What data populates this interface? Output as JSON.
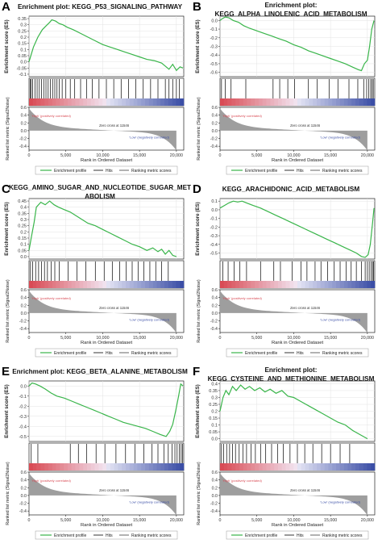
{
  "figure": {
    "colors": {
      "enrichment": "#39b54a",
      "hit": "#000000",
      "metric": "#9e9e9e",
      "positive": "#d94b55",
      "negative": "#3b4ea6",
      "axis": "#222222"
    }
  },
  "chart_data": [
    {
      "panel_letter": "A",
      "type": "line",
      "title_lines": [
        "Enrichment plot: KEGG_P53_SIGNALING_PATHWAY"
      ],
      "ylabel_top": "Enrichment score (ES)",
      "ylabel_bottom": "Ranked list metric (Signal2Noise)",
      "xlabel": "Rank in Ordered Dataset",
      "es_ticks": [
        0.35,
        0.3,
        0.25,
        0.2,
        0.15,
        0.1,
        0.05,
        0.0,
        -0.05,
        -0.1
      ],
      "es_ylim": [
        -0.12,
        0.37
      ],
      "x": [
        0,
        600,
        1200,
        1800,
        2300,
        2800,
        3100,
        3600,
        4100,
        4600,
        5200,
        6000,
        7000,
        8000,
        9000,
        10000,
        11000,
        12000,
        13000,
        14000,
        15000,
        16000,
        17000,
        18000,
        19000,
        19500,
        20000,
        20500,
        20900
      ],
      "es": [
        0.0,
        0.12,
        0.2,
        0.26,
        0.29,
        0.32,
        0.34,
        0.33,
        0.31,
        0.3,
        0.28,
        0.26,
        0.23,
        0.2,
        0.17,
        0.14,
        0.12,
        0.1,
        0.08,
        0.06,
        0.04,
        0.02,
        0.01,
        -0.01,
        -0.06,
        -0.02,
        -0.07,
        -0.04,
        -0.05
      ],
      "hits": [
        150,
        300,
        500,
        800,
        1100,
        1400,
        1700,
        2000,
        2300,
        2600,
        2900,
        3200,
        3500,
        3800,
        4100,
        4500,
        5000,
        5600,
        6200,
        7000,
        7800,
        8600,
        9500,
        10500,
        11500,
        12500,
        13500,
        14500,
        15500,
        16500,
        17500,
        18500,
        19000,
        19500,
        20000,
        20400
      ],
      "metric_ticks": [
        0.6,
        0.4,
        0.2,
        0.0,
        -0.2,
        -0.4
      ],
      "metric_ylim": [
        -0.5,
        0.6
      ],
      "metric_start": 0.5,
      "metric_end": -0.45,
      "x_ticks": [
        "0",
        "5,000",
        "10,000",
        "15,000",
        "20,000"
      ],
      "xlim": [
        0,
        21000
      ],
      "zero_cross_label": "Zero cross at 11546",
      "pos_label": "'High' (positively correlated)",
      "neg_label": "'Low' (negatively correlated)",
      "legend": [
        "Enrichment profile",
        "Hits",
        "Ranking metric scores"
      ]
    },
    {
      "panel_letter": "B",
      "type": "line",
      "title_lines": [
        "Enrichment plot:",
        "KEGG_ALPHA_LINOLENIC_ACID_METABOLISM"
      ],
      "ylabel_top": "Enrichment score (ES)",
      "ylabel_bottom": "Ranked list metric (Signal2Noise)",
      "xlabel": "Rank in Ordered Dataset",
      "es_ticks": [
        0.0,
        -0.1,
        -0.2,
        -0.3,
        -0.4,
        -0.5,
        -0.6
      ],
      "es_ylim": [
        -0.65,
        0.05
      ],
      "x": [
        0,
        300,
        700,
        1200,
        1800,
        2500,
        3200,
        4000,
        5000,
        6000,
        7000,
        8000,
        9000,
        10000,
        11000,
        12000,
        13000,
        14000,
        15000,
        16000,
        17000,
        18000,
        18800,
        19200,
        19600,
        20000,
        20300,
        20600,
        20900
      ],
      "es": [
        0.0,
        0.02,
        0.04,
        0.03,
        0.0,
        -0.02,
        -0.06,
        -0.09,
        -0.12,
        -0.15,
        -0.18,
        -0.21,
        -0.24,
        -0.28,
        -0.31,
        -0.35,
        -0.38,
        -0.41,
        -0.44,
        -0.47,
        -0.5,
        -0.54,
        -0.57,
        -0.58,
        -0.5,
        -0.46,
        -0.3,
        -0.1,
        0.0
      ],
      "hits": [
        200,
        700,
        1500,
        3500,
        7200,
        8100,
        9200,
        10100,
        12000,
        13200,
        14800,
        16000,
        17500,
        18700,
        19500,
        19900,
        20200,
        20450,
        20650,
        20800
      ],
      "metric_ticks": [
        0.6,
        0.4,
        0.2,
        0.0,
        -0.2,
        -0.4
      ],
      "metric_ylim": [
        -0.5,
        0.6
      ],
      "metric_start": 0.5,
      "metric_end": -0.45,
      "x_ticks": [
        "0",
        "5,000",
        "10,000",
        "15,000",
        "20,000"
      ],
      "xlim": [
        0,
        21000
      ],
      "zero_cross_label": "Zero cross at 11546",
      "pos_label": "'High' (positively correlated)",
      "neg_label": "'Low' (negatively correlated)",
      "legend": [
        "Enrichment profile",
        "Hits",
        "Ranking metric scores"
      ]
    },
    {
      "panel_letter": "C",
      "type": "line",
      "title_lines": [
        "KEGG_AMINO_SUGAR_AND_NUCLEOTIDE_SUGAR_MET",
        "ABOLISM"
      ],
      "ylabel_top": "Enrichment score (ES)",
      "ylabel_bottom": "Ranked list metric (Signal2Noise)",
      "xlabel": "Rank in Ordered Dataset",
      "es_ticks": [
        0.45,
        0.4,
        0.35,
        0.3,
        0.25,
        0.2,
        0.15,
        0.1,
        0.05,
        0.0
      ],
      "es_ylim": [
        -0.02,
        0.47
      ],
      "x": [
        0,
        300,
        700,
        1000,
        1600,
        2200,
        2800,
        3400,
        4000,
        4800,
        5600,
        6400,
        7200,
        8000,
        9000,
        10000,
        11000,
        12000,
        13000,
        14000,
        15000,
        16000,
        16800,
        17500,
        18000,
        18500,
        19000,
        19500,
        20000
      ],
      "es": [
        0.05,
        0.15,
        0.28,
        0.4,
        0.44,
        0.42,
        0.45,
        0.42,
        0.4,
        0.38,
        0.36,
        0.33,
        0.3,
        0.27,
        0.25,
        0.22,
        0.19,
        0.16,
        0.13,
        0.1,
        0.08,
        0.05,
        0.07,
        0.04,
        0.06,
        0.02,
        0.05,
        0.01,
        0.0
      ],
      "hits": [
        200,
        500,
        900,
        1300,
        1700,
        2100,
        2500,
        3000,
        3500,
        4100,
        5300,
        6500,
        7700,
        9000,
        10200,
        11300,
        12300,
        13200,
        14000,
        14800,
        15600,
        16400,
        17200,
        18000,
        18900
      ],
      "metric_ticks": [
        0.6,
        0.4,
        0.2,
        0.0,
        -0.2,
        -0.4
      ],
      "metric_ylim": [
        -0.5,
        0.6
      ],
      "metric_start": 0.5,
      "metric_end": -0.45,
      "x_ticks": [
        "0",
        "5,000",
        "10,000",
        "15,000",
        "20,000"
      ],
      "xlim": [
        0,
        21000
      ],
      "zero_cross_label": "Zero cross at 11546",
      "pos_label": "'High' (positively correlated)",
      "neg_label": "'Low' (negatively correlated)",
      "legend": [
        "Enrichment profile",
        "Hits",
        "Ranking metric scores"
      ]
    },
    {
      "panel_letter": "D",
      "type": "line",
      "title_lines": [
        "KEGG_ARACHIDONIC_ACID_METABOLISM"
      ],
      "ylabel_top": "Enrichment score (ES)",
      "ylabel_bottom": "Ranked list metric (Signal2Noise)",
      "xlabel": "Rank in Ordered Dataset",
      "es_ticks": [
        0.1,
        0.0,
        -0.1,
        -0.2,
        -0.3,
        -0.4,
        -0.5
      ],
      "es_ylim": [
        -0.57,
        0.13
      ],
      "x": [
        0,
        600,
        1200,
        1800,
        2400,
        3000,
        3600,
        4500,
        5500,
        6500,
        7500,
        8500,
        9500,
        10500,
        11500,
        12500,
        13500,
        14500,
        15500,
        16500,
        17500,
        18500,
        19200,
        19700,
        20100,
        20400,
        20700,
        20900
      ],
      "es": [
        0.02,
        0.05,
        0.08,
        0.1,
        0.09,
        0.1,
        0.08,
        0.05,
        0.02,
        -0.02,
        -0.06,
        -0.1,
        -0.14,
        -0.18,
        -0.22,
        -0.26,
        -0.3,
        -0.34,
        -0.38,
        -0.42,
        -0.46,
        -0.5,
        -0.54,
        -0.55,
        -0.52,
        -0.4,
        -0.15,
        0.02
      ],
      "hits": [
        400,
        1100,
        1900,
        2700,
        3600,
        5500,
        7300,
        8200,
        9800,
        11000,
        11800,
        12900,
        13700,
        14600,
        15500,
        16300,
        17100,
        17800,
        18500,
        19200,
        19700,
        20000,
        20250,
        20500,
        20700,
        20850
      ],
      "metric_ticks": [
        0.6,
        0.4,
        0.2,
        0.0,
        -0.2,
        -0.4
      ],
      "metric_ylim": [
        -0.5,
        0.6
      ],
      "metric_start": 0.5,
      "metric_end": -0.45,
      "x_ticks": [
        "0",
        "5,000",
        "10,000",
        "15,000",
        "20,000"
      ],
      "xlim": [
        0,
        21000
      ],
      "zero_cross_label": "Zero cross at 11546",
      "pos_label": "'High' (positively correlated)",
      "neg_label": "'Low' (negatively correlated)",
      "legend": [
        "Enrichment profile",
        "Hits",
        "Ranking metric scores"
      ]
    },
    {
      "panel_letter": "E",
      "type": "line",
      "title_lines": [
        "Enrichment plot: KEGG_BETA_ALANINE_METABOLISM"
      ],
      "ylabel_top": "Enrichment score (ES)",
      "ylabel_bottom": "Ranked list metric (Signal2Noise)",
      "xlabel": "Rank in Ordered Dataset",
      "es_ticks": [
        0.0,
        -0.1,
        -0.2,
        -0.3,
        -0.4,
        -0.5
      ],
      "es_ylim": [
        -0.55,
        0.05
      ],
      "x": [
        0,
        400,
        900,
        1500,
        2200,
        3000,
        3800,
        4800,
        5800,
        6800,
        7800,
        8800,
        9800,
        10800,
        11800,
        12800,
        13800,
        14800,
        15800,
        16800,
        17800,
        18600,
        19100,
        19500,
        19900,
        20300,
        20600,
        20900
      ],
      "es": [
        0.0,
        0.03,
        0.02,
        0.0,
        -0.03,
        -0.07,
        -0.1,
        -0.12,
        -0.15,
        -0.18,
        -0.21,
        -0.24,
        -0.27,
        -0.3,
        -0.33,
        -0.36,
        -0.38,
        -0.4,
        -0.42,
        -0.45,
        -0.48,
        -0.5,
        -0.45,
        -0.38,
        -0.25,
        -0.1,
        0.02,
        0.0
      ],
      "hits": [
        300,
        1200,
        5600,
        6700,
        7800,
        9100,
        10300,
        11800,
        13100,
        14400,
        15600,
        16700,
        17500,
        18300,
        18900,
        19400,
        19800,
        20100,
        20400,
        20650,
        20850
      ],
      "metric_ticks": [
        0.6,
        0.4,
        0.2,
        0.0,
        -0.2,
        -0.4
      ],
      "metric_ylim": [
        -0.5,
        0.6
      ],
      "metric_start": 0.5,
      "metric_end": -0.45,
      "x_ticks": [
        "0",
        "5,000",
        "10,000",
        "15,000",
        "20,000"
      ],
      "xlim": [
        0,
        21000
      ],
      "zero_cross_label": "Zero cross at 11546",
      "pos_label": "'High' (positively correlated)",
      "neg_label": "'Low' (negatively correlated)",
      "legend": [
        "Enrichment profile",
        "Hits",
        "Ranking metric scores"
      ]
    },
    {
      "panel_letter": "F",
      "type": "line",
      "title_lines": [
        "Enrichment plot:",
        "KEGG_CYSTEINE_AND_METHIONINE_METABOLISM"
      ],
      "ylabel_top": "Enrichment score (ES)",
      "ylabel_bottom": "Ranked list metric (Signal2Noise)",
      "xlabel": "Rank in Ordered Dataset",
      "es_ticks": [
        0.4,
        0.35,
        0.3,
        0.25,
        0.2,
        0.15,
        0.1,
        0.05,
        0.0
      ],
      "es_ylim": [
        -0.02,
        0.42
      ],
      "x": [
        0,
        400,
        800,
        1200,
        1700,
        2200,
        2800,
        3400,
        4000,
        4700,
        5400,
        6100,
        6800,
        7600,
        8400,
        9200,
        10000,
        11000,
        12000,
        13000,
        14000,
        15000,
        16000,
        17000,
        18000,
        19000,
        20000
      ],
      "es": [
        0.2,
        0.3,
        0.35,
        0.32,
        0.38,
        0.35,
        0.39,
        0.36,
        0.38,
        0.35,
        0.37,
        0.34,
        0.36,
        0.33,
        0.35,
        0.31,
        0.3,
        0.27,
        0.24,
        0.21,
        0.18,
        0.15,
        0.12,
        0.1,
        0.06,
        0.03,
        0.0
      ],
      "hits": [
        200,
        500,
        900,
        1300,
        1700,
        2100,
        2600,
        3100,
        3600,
        4200,
        4800,
        5500,
        6200,
        7000,
        7800,
        8600,
        9500,
        10500,
        11500,
        12600,
        13800,
        15000,
        16300,
        17600
      ],
      "metric_ticks": [
        0.6,
        0.4,
        0.2,
        0.0,
        -0.2,
        -0.4
      ],
      "metric_ylim": [
        -0.5,
        0.6
      ],
      "metric_start": 0.5,
      "metric_end": -0.45,
      "x_ticks": [
        "0",
        "5,000",
        "10,000",
        "15,000",
        "20,000"
      ],
      "xlim": [
        0,
        21000
      ],
      "zero_cross_label": "Zero cross at 11546",
      "pos_label": "'High' (positively correlated)",
      "neg_label": "'Low' (negatively correlated)",
      "legend": [
        "Enrichment profile",
        "Hits",
        "Ranking metric scores"
      ]
    }
  ]
}
